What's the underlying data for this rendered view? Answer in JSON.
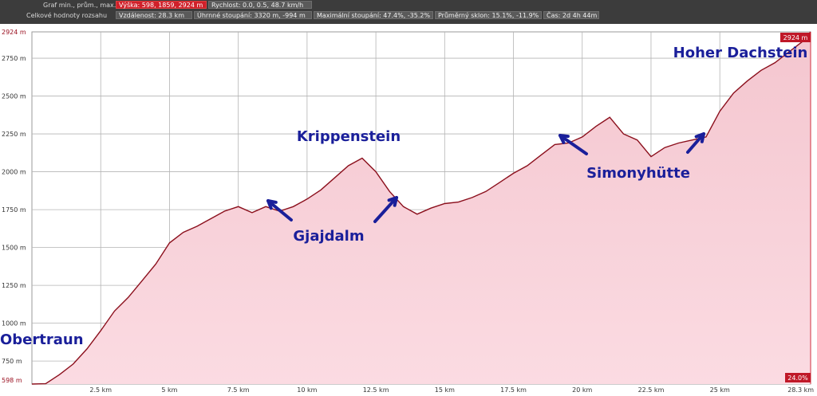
{
  "header": {
    "row1_label": "Graf min., prům., max.",
    "row2_label": "Celkové hodnoty rozsahu",
    "row1": [
      {
        "text": "Výška: 598, 1859, 2924 m",
        "style": "red"
      },
      {
        "text": "Rychlost: 0.0, 0.5, 48.7 km/h",
        "style": "gray"
      }
    ],
    "row2": [
      {
        "text": "Vzdálenost: 28.3 km"
      },
      {
        "text": "Úhrnné stoupání: 3320 m, -994 m"
      },
      {
        "text": "Maximální stoupání: 47.4%, -35.2%"
      },
      {
        "text": "Průměrný sklon: 15.1%, -11.9%"
      },
      {
        "text": "Čas: 2d 4h 44m"
      }
    ]
  },
  "chart_data": {
    "type": "area",
    "xlabel": "",
    "ylabel": "",
    "xlim": [
      0,
      28.3
    ],
    "ylim": [
      598,
      2924
    ],
    "grid": true,
    "colors": {
      "line": "#8b0f1c",
      "fill_top": "#f4c6cf",
      "fill_bottom": "#fbdbe2",
      "annotation": "#1a1f9a",
      "grid": "#b4b4b4"
    },
    "x_ticks": [
      2.5,
      5,
      7.5,
      10,
      12.5,
      15,
      17.5,
      20,
      22.5,
      25
    ],
    "x_tick_labels": [
      "2.5 km",
      "5 km",
      "7.5 km",
      "10 km",
      "12.5 km",
      "15 km",
      "17.5 km",
      "20 km",
      "22.5 km",
      "25 km"
    ],
    "x_end_label": "28.3 km",
    "y_ticks": [
      750,
      1000,
      1250,
      1500,
      1750,
      2000,
      2250,
      2500,
      2750
    ],
    "y_tick_labels": [
      "750 m",
      "1000 m",
      "1250 m",
      "1500 m",
      "1750 m",
      "2000 m",
      "2250 m",
      "2500 m",
      "2750 m"
    ],
    "y_min_label": "598 m",
    "y_max_label": "2924 m",
    "y_max_marker": "2924 m",
    "bottom_right_marker": "24.0%",
    "x": [
      0,
      0.5,
      1.0,
      1.5,
      2.0,
      2.5,
      3.0,
      3.5,
      4.0,
      4.5,
      5.0,
      5.5,
      6.0,
      6.5,
      7.0,
      7.5,
      8.0,
      8.5,
      9.0,
      9.5,
      10.0,
      10.5,
      11.0,
      11.5,
      12.0,
      12.5,
      13.0,
      13.5,
      14.0,
      14.5,
      15.0,
      15.5,
      16.0,
      16.5,
      17.0,
      17.5,
      18.0,
      18.5,
      19.0,
      19.5,
      20.0,
      20.5,
      21.0,
      21.5,
      22.0,
      22.5,
      23.0,
      23.5,
      24.0,
      24.5,
      25.0,
      25.5,
      26.0,
      26.5,
      27.0,
      27.5,
      28.0,
      28.3
    ],
    "series": [
      {
        "values": [
          598,
          600,
          660,
          730,
          830,
          950,
          1080,
          1170,
          1280,
          1390,
          1530,
          1600,
          1640,
          1690,
          1740,
          1770,
          1730,
          1770,
          1740,
          1770,
          1820,
          1880,
          1960,
          2040,
          2090,
          2000,
          1870,
          1770,
          1720,
          1760,
          1790,
          1800,
          1830,
          1870,
          1930,
          1990,
          2040,
          2110,
          2180,
          2190,
          2230,
          2300,
          2360,
          2250,
          2210,
          2100,
          2160,
          2190,
          2210,
          2230,
          2400,
          2520,
          2600,
          2670,
          2720,
          2790,
          2860,
          2924
        ]
      }
    ],
    "annotations": [
      {
        "text": "Obertraun",
        "x": 0,
        "y": 650
      },
      {
        "text": "Krippenstein",
        "x": 11.0,
        "y": 2150
      },
      {
        "text": "Gjajdalm",
        "x": 9.7,
        "y": 1520
      },
      {
        "text": "Simonyhütte",
        "x": 23.2,
        "y": 1930
      },
      {
        "text": "Hoher Dachstein",
        "x": 24.5,
        "y": 2760
      }
    ]
  }
}
